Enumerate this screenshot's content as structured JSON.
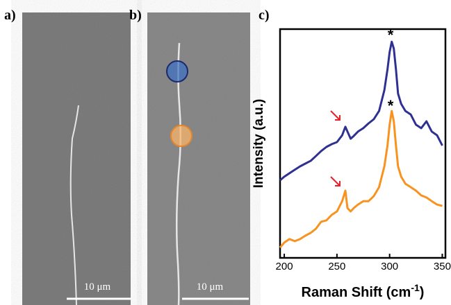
{
  "panels": [
    {
      "label": "a)",
      "scale_bar": "10 μm"
    },
    {
      "label": "b)",
      "scale_bar": "10 μm"
    },
    {
      "label": "c)"
    }
  ],
  "chart_data": {
    "type": "line",
    "ylabel": "Intensity (a.u.)",
    "xlabel": {
      "text": "Raman Shift (cm",
      "sup": "-1",
      "end": ")"
    },
    "annotations": [
      "*",
      "*"
    ],
    "x": [
      196,
      200,
      205,
      210,
      215,
      220,
      225,
      230,
      235,
      240,
      245,
      250,
      255,
      258,
      260,
      263,
      266,
      270,
      275,
      280,
      285,
      290,
      295,
      298,
      300,
      302,
      304,
      306,
      308,
      311,
      315,
      320,
      325,
      330,
      335,
      340,
      345,
      350
    ],
    "series": [
      {
        "color": "#2e3192",
        "values": [
          33.9,
          35.5,
          37,
          38.5,
          40,
          41.2,
          42.4,
          44.5,
          46.7,
          48.5,
          49.7,
          50.6,
          53.6,
          57.3,
          55.2,
          52.1,
          53.3,
          55.2,
          56.7,
          58.8,
          60.6,
          64.2,
          73.3,
          82.4,
          90,
          94.5,
          91.5,
          82.4,
          71.8,
          67.3,
          64.2,
          62.7,
          58.2,
          56.7,
          59.7,
          55.2,
          53.6,
          49.1
        ]
      },
      {
        "color": "#f7931e",
        "values": [
          4.5,
          6.7,
          8.2,
          7.3,
          8.2,
          9.7,
          10.9,
          12.7,
          15.8,
          16.4,
          18.8,
          20.3,
          24.8,
          29.4,
          21.8,
          20.3,
          21.8,
          23.3,
          24.8,
          24.8,
          27,
          30.9,
          40,
          49.1,
          58.2,
          64.2,
          59.7,
          49.1,
          40,
          35.5,
          32.4,
          30.9,
          29.4,
          27.3,
          26.4,
          24.8,
          23.3,
          22.7
        ]
      }
    ],
    "xlim": [
      196,
      353
    ],
    "xticks": [
      200,
      250,
      300,
      350
    ],
    "ylim": [
      0,
      100
    ]
  }
}
